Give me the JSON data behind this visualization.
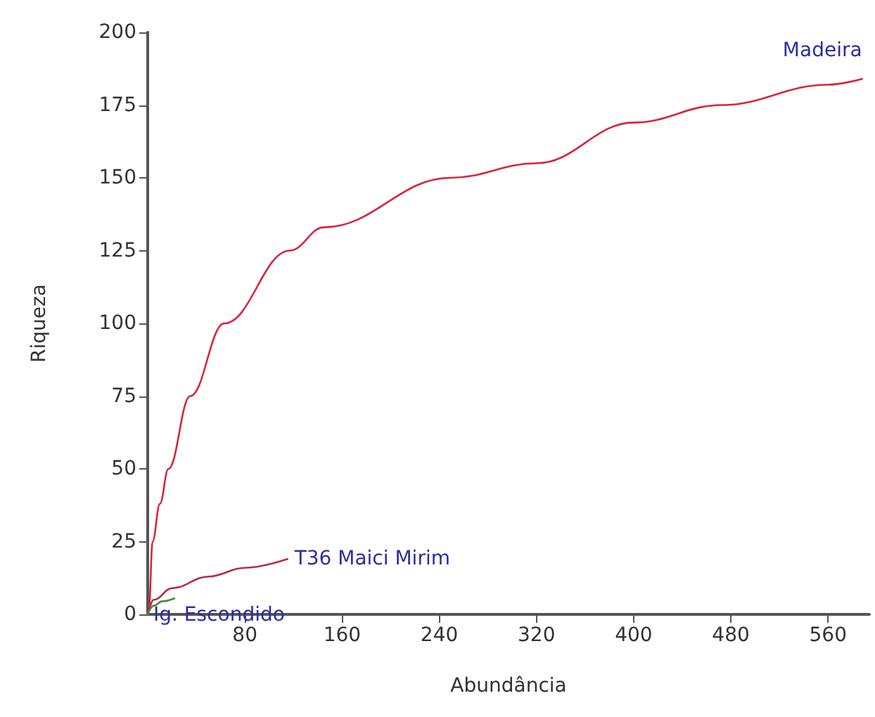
{
  "chart_data": {
    "type": "line",
    "xlabel": "Abundância",
    "ylabel": "Riqueza",
    "xlim": [
      0,
      594
    ],
    "ylim": [
      0,
      200
    ],
    "xticks": [
      80,
      160,
      240,
      320,
      400,
      480,
      560
    ],
    "yticks": [
      0,
      25,
      50,
      75,
      100,
      125,
      150,
      175,
      200
    ],
    "grid": false,
    "marker": "none",
    "line_style": "solid",
    "series": [
      {
        "name": "Madeira",
        "color": "#d62640",
        "x": [
          0,
          1,
          4,
          10,
          17,
          35,
          63,
          117,
          145,
          249,
          320,
          400,
          472,
          560,
          588
        ],
        "values": [
          0,
          2,
          25,
          38,
          50,
          75,
          100,
          125,
          133,
          150,
          155,
          169,
          175,
          182,
          184
        ]
      },
      {
        "name": "T36 Maici Mirim",
        "color": "#b0304a",
        "x": [
          0,
          5,
          20,
          50,
          80,
          115
        ],
        "values": [
          0,
          5,
          9,
          13,
          16,
          19
        ]
      },
      {
        "name": "Ig. Escondido",
        "color": "#4a8a3a",
        "x": [
          0,
          5,
          12,
          22
        ],
        "values": [
          0,
          3,
          4.5,
          5.5
        ]
      }
    ]
  }
}
